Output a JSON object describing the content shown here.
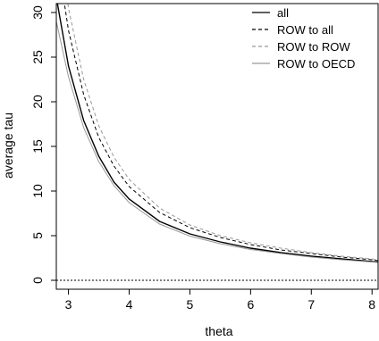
{
  "chart_data": {
    "type": "line",
    "title": "",
    "xlabel": "theta",
    "ylabel": "average tau",
    "xlim": [
      2.8,
      8.1
    ],
    "ylim": [
      -1,
      31
    ],
    "x_ticks": [
      3,
      4,
      5,
      6,
      7,
      8
    ],
    "y_ticks": [
      0,
      5,
      10,
      15,
      20,
      25,
      30
    ],
    "grid": false,
    "legend_position": "top-right",
    "series": [
      {
        "name": "all",
        "style": "solid",
        "color": "#000000",
        "x": [
          2.8,
          3.0,
          3.25,
          3.5,
          3.75,
          4.0,
          4.5,
          5.0,
          5.5,
          6.0,
          6.5,
          7.0,
          7.5,
          8.0,
          8.1
        ],
        "y": [
          31.7,
          24.0,
          17.9,
          13.9,
          11.0,
          9.1,
          6.6,
          5.2,
          4.3,
          3.6,
          3.1,
          2.7,
          2.4,
          2.1,
          2.05
        ]
      },
      {
        "name": "ROW to all",
        "style": "dashed",
        "color": "#000000",
        "x": [
          2.8,
          3.0,
          3.25,
          3.5,
          3.75,
          4.0,
          4.5,
          5.0,
          5.5,
          6.0,
          6.5,
          7.0,
          7.5,
          8.0,
          8.1
        ],
        "y": [
          37.0,
          28.0,
          20.8,
          16.0,
          12.8,
          10.5,
          7.6,
          5.9,
          4.8,
          4.0,
          3.4,
          3.0,
          2.6,
          2.3,
          2.2
        ]
      },
      {
        "name": "ROW to ROW",
        "style": "dashed",
        "color": "#999999",
        "x": [
          2.8,
          3.0,
          3.25,
          3.5,
          3.75,
          4.0,
          4.5,
          5.0,
          5.5,
          6.0,
          6.5,
          7.0,
          7.5,
          8.0,
          8.1
        ],
        "y": [
          40.0,
          30.5,
          22.5,
          17.3,
          13.8,
          11.3,
          8.1,
          6.2,
          5.0,
          4.2,
          3.6,
          3.1,
          2.7,
          2.4,
          2.3
        ]
      },
      {
        "name": "ROW to OECD",
        "style": "solid",
        "color": "#999999",
        "x": [
          2.8,
          3.0,
          3.25,
          3.5,
          3.75,
          4.0,
          4.5,
          5.0,
          5.5,
          6.0,
          6.5,
          7.0,
          7.5,
          8.0,
          8.1
        ],
        "y": [
          29.0,
          22.8,
          17.1,
          13.3,
          10.6,
          8.7,
          6.3,
          4.95,
          4.1,
          3.45,
          3.0,
          2.6,
          2.3,
          2.05,
          2.0
        ]
      }
    ],
    "reference_line": {
      "y": 0,
      "style": "dotted",
      "color": "#000000"
    }
  }
}
